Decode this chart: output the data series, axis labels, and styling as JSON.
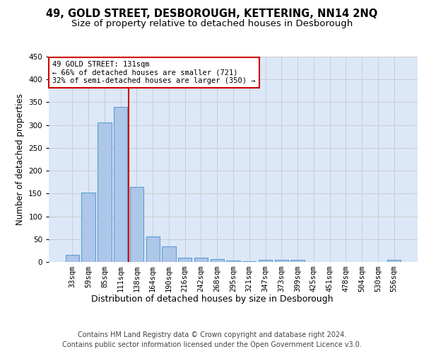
{
  "title": "49, GOLD STREET, DESBOROUGH, KETTERING, NN14 2NQ",
  "subtitle": "Size of property relative to detached houses in Desborough",
  "xlabel": "Distribution of detached houses by size in Desborough",
  "ylabel": "Number of detached properties",
  "categories": [
    "33sqm",
    "59sqm",
    "85sqm",
    "111sqm",
    "138sqm",
    "164sqm",
    "190sqm",
    "216sqm",
    "242sqm",
    "268sqm",
    "295sqm",
    "321sqm",
    "347sqm",
    "373sqm",
    "399sqm",
    "425sqm",
    "451sqm",
    "478sqm",
    "504sqm",
    "530sqm",
    "556sqm"
  ],
  "values": [
    15,
    152,
    305,
    340,
    165,
    56,
    34,
    10,
    9,
    6,
    3,
    2,
    5,
    4,
    4,
    0,
    0,
    0,
    0,
    0,
    4
  ],
  "bar_color": "#aec6e8",
  "bar_edge_color": "#5a9fd4",
  "bar_linewidth": 0.8,
  "grid_color": "#cccccc",
  "background_color": "#ffffff",
  "plot_bg_color": "#dce8f8",
  "ylim": [
    0,
    450
  ],
  "yticks": [
    0,
    50,
    100,
    150,
    200,
    250,
    300,
    350,
    400,
    450
  ],
  "property_line_x": 3.5,
  "annotation_text": "49 GOLD STREET: 131sqm\n← 66% of detached houses are smaller (721)\n32% of semi-detached houses are larger (350) →",
  "annotation_box_color": "#ffffff",
  "annotation_box_edge": "#cc0000",
  "property_line_color": "#cc0000",
  "footer_line1": "Contains HM Land Registry data © Crown copyright and database right 2024.",
  "footer_line2": "Contains public sector information licensed under the Open Government Licence v3.0.",
  "title_fontsize": 10.5,
  "subtitle_fontsize": 9.5,
  "ylabel_fontsize": 8.5,
  "xlabel_fontsize": 9,
  "tick_fontsize": 7.5,
  "annotation_fontsize": 7.5,
  "footer_fontsize": 7
}
